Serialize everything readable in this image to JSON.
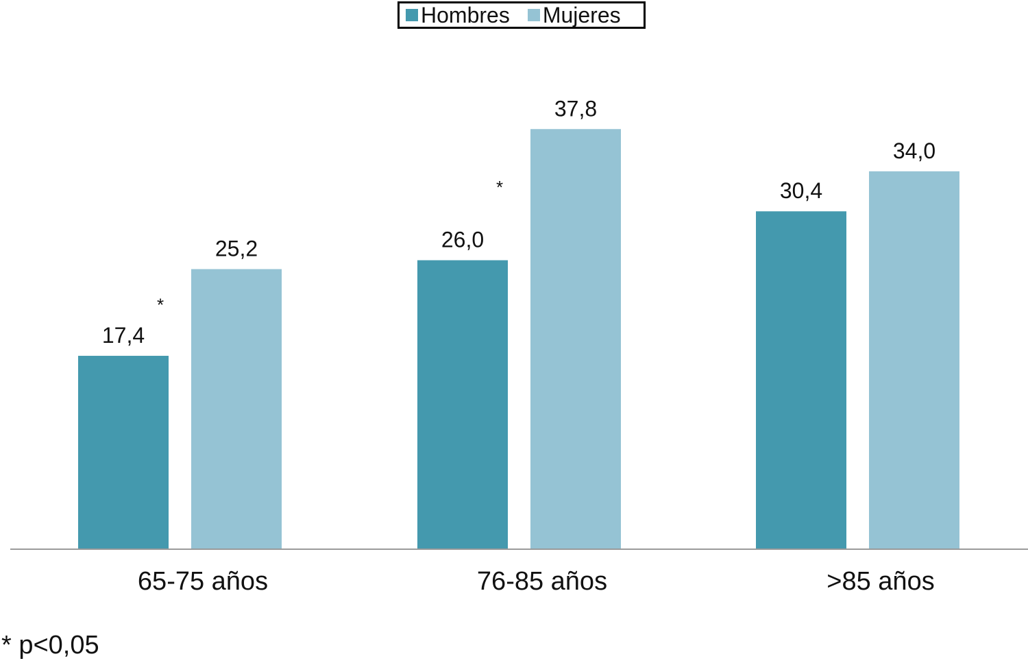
{
  "chart_data": {
    "type": "bar",
    "title": "",
    "xlabel": "",
    "ylabel": "",
    "ylim": [
      0,
      40
    ],
    "grid": false,
    "legend_position": "top-center",
    "categories": [
      "65-75 años",
      "76-85 años",
      ">85 años"
    ],
    "series": [
      {
        "name": "Hombres",
        "color": "#4499AE",
        "values": [
          17.4,
          26.0,
          30.4
        ],
        "labels": [
          "17,4",
          "26,0",
          "30,4"
        ]
      },
      {
        "name": "Mujeres",
        "color": "#95C3D4",
        "values": [
          25.2,
          37.8,
          34.0
        ],
        "labels": [
          "25,2",
          "37,8",
          "34,0"
        ]
      }
    ],
    "significance_marks": [
      {
        "category_index": 0,
        "symbol": "*"
      },
      {
        "category_index": 1,
        "symbol": "*"
      }
    ],
    "axis_color": "#9A9A9A"
  },
  "footnote": "* p<0,05"
}
